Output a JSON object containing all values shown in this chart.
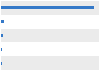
{
  "values": [
    920000,
    28000,
    20000,
    14000,
    8000
  ],
  "bar_color": "#3579c8",
  "background_color": "#ffffff",
  "band_colors": [
    "#ebebeb",
    "#ffffff",
    "#ebebeb",
    "#ffffff",
    "#ebebeb",
    "#ffffff"
  ],
  "figsize": [
    1.0,
    0.71
  ],
  "dpi": 100
}
